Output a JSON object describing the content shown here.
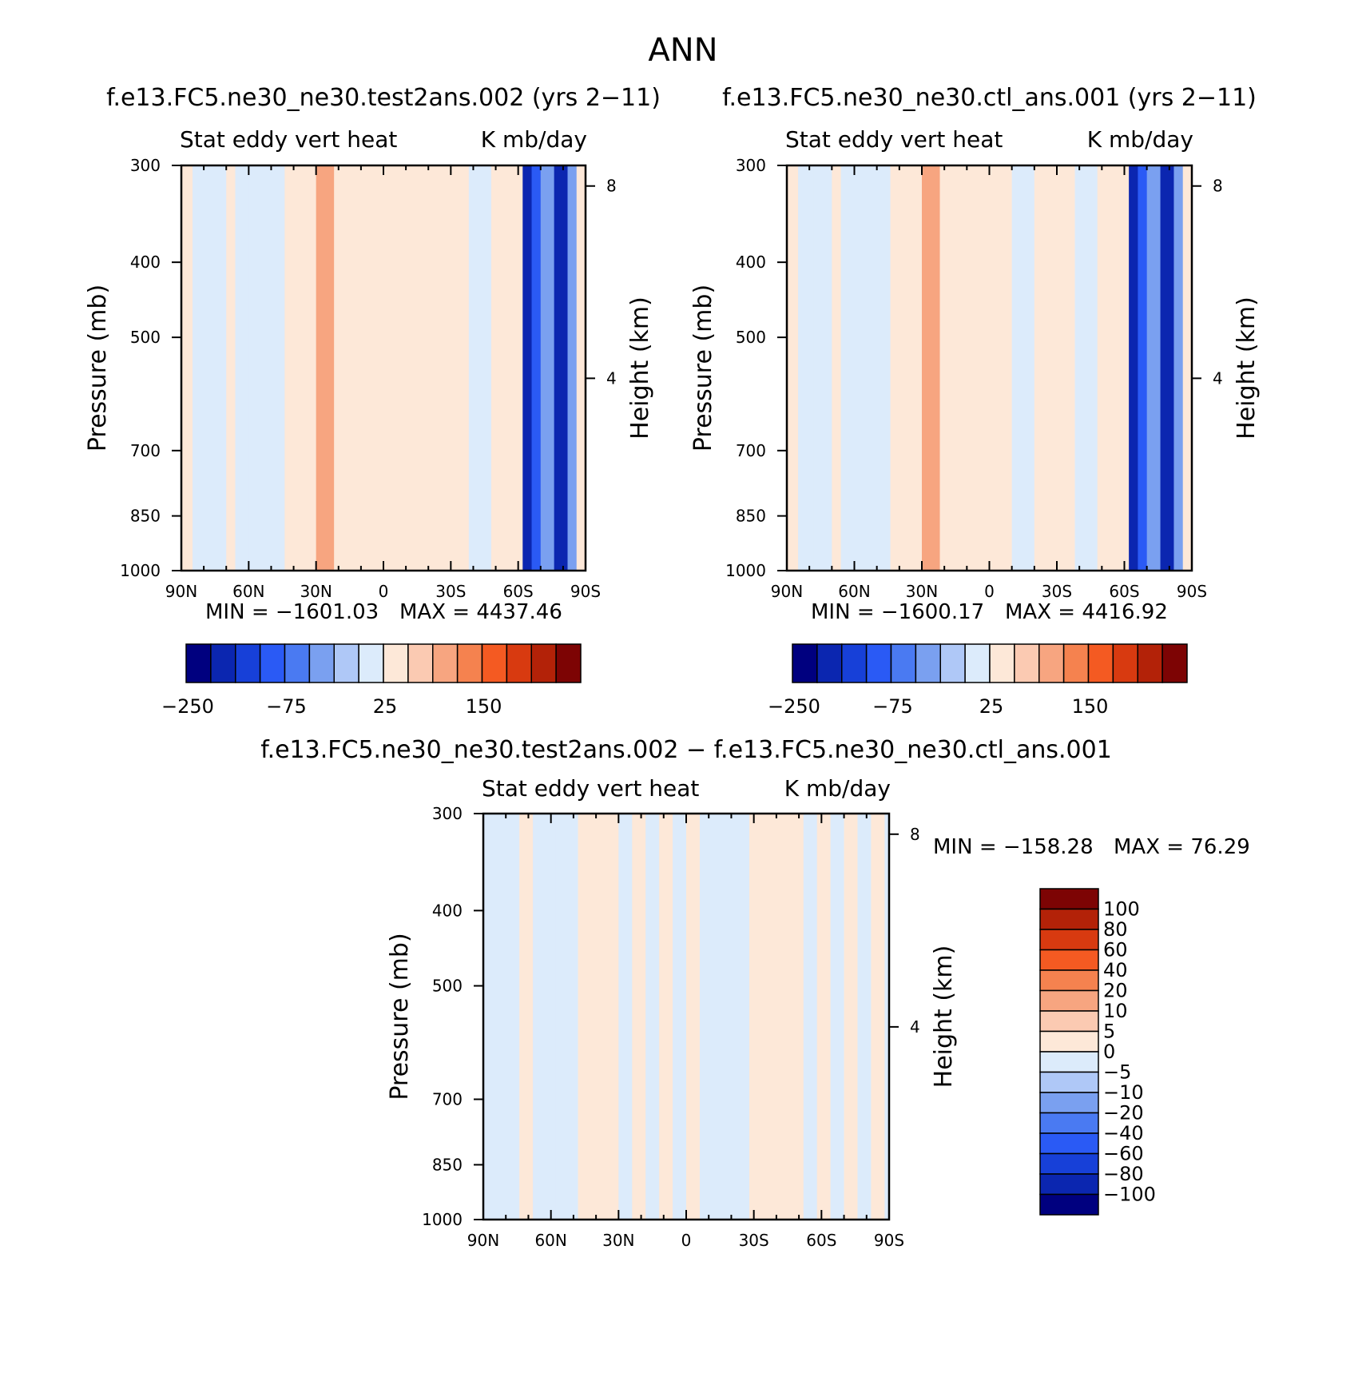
{
  "figure": {
    "title": "ANN"
  },
  "colors": {
    "abs_levels": [
      "#00007f",
      "#0b26b0",
      "#1740d8",
      "#2a5af5",
      "#4a7af2",
      "#7aa0f0",
      "#afc8f7",
      "#dcebfb",
      "#fde8d8",
      "#fbcab2",
      "#f7a580",
      "#f5824f",
      "#f45a22",
      "#d83a10",
      "#b32208",
      "#7d0404"
    ],
    "diff_levels": [
      "#00007f",
      "#0b26b0",
      "#1740d8",
      "#2a5af5",
      "#4a7af2",
      "#7aa0f0",
      "#afc8f7",
      "#dcebfb",
      "#fde8d8",
      "#fbcab2",
      "#f7a580",
      "#f5824f",
      "#f45a22",
      "#d83a10",
      "#b32208",
      "#7d0404"
    ]
  },
  "chart_data": [
    {
      "type": "heatmap",
      "id": "test",
      "title": "f.e13.FC5.ne30_ne30.test2ans.002 (yrs 2−11)",
      "variable": "Stat eddy vert heat",
      "units": "K mb/day",
      "ylabel": "Pressure (mb)",
      "ylabel_right": "Height (km)",
      "xticks": [
        "90N",
        "60N",
        "30N",
        "0",
        "30S",
        "60S",
        "90S"
      ],
      "yticks": [
        "300",
        "400",
        "500",
        "700",
        "850",
        "1000"
      ],
      "yticks_right": [
        "8",
        "4"
      ],
      "ylim": [
        1000,
        300
      ],
      "y_log_scale": true,
      "min_label": "MIN = −1601.03",
      "max_label": "MAX = 4437.46",
      "colorbar_labels": [
        "−250",
        "−75",
        "25",
        "150"
      ],
      "bands": [
        {
          "lat": 90,
          "value": 5
        },
        {
          "lat": 85,
          "value": -5
        },
        {
          "lat": 78,
          "value": -5
        },
        {
          "lat": 70,
          "value": 5
        },
        {
          "lat": 66,
          "value": -5
        },
        {
          "lat": 60,
          "value": -5
        },
        {
          "lat": 52,
          "value": -5
        },
        {
          "lat": 44,
          "value": 5
        },
        {
          "lat": 38,
          "value": 5
        },
        {
          "lat": 30,
          "value": 60
        },
        {
          "lat": 22,
          "value": 5
        },
        {
          "lat": 10,
          "value": 5
        },
        {
          "lat": 0,
          "value": 5
        },
        {
          "lat": -10,
          "value": 5
        },
        {
          "lat": -20,
          "value": 5
        },
        {
          "lat": -28,
          "value": 5
        },
        {
          "lat": -38,
          "value": -5
        },
        {
          "lat": -48,
          "value": 5
        },
        {
          "lat": -56,
          "value": 5
        },
        {
          "lat": -62,
          "value": -250
        },
        {
          "lat": -66,
          "value": -150
        },
        {
          "lat": -70,
          "value": -60
        },
        {
          "lat": -76,
          "value": -250
        },
        {
          "lat": -82,
          "value": -75
        },
        {
          "lat": -86,
          "value": 20
        }
      ]
    },
    {
      "type": "heatmap",
      "id": "ctl",
      "title": "f.e13.FC5.ne30_ne30.ctl_ans.001 (yrs 2−11)",
      "variable": "Stat eddy vert heat",
      "units": "K mb/day",
      "ylabel": "Pressure (mb)",
      "ylabel_right": "Height (km)",
      "xticks": [
        "90N",
        "60N",
        "30N",
        "0",
        "30S",
        "60S",
        "90S"
      ],
      "yticks": [
        "300",
        "400",
        "500",
        "700",
        "850",
        "1000"
      ],
      "yticks_right": [
        "8",
        "4"
      ],
      "ylim": [
        1000,
        300
      ],
      "y_log_scale": true,
      "min_label": "MIN = −1600.17",
      "max_label": "MAX = 4416.92",
      "colorbar_labels": [
        "−250",
        "−75",
        "25",
        "150"
      ],
      "bands": [
        {
          "lat": 90,
          "value": 5
        },
        {
          "lat": 85,
          "value": -5
        },
        {
          "lat": 78,
          "value": -5
        },
        {
          "lat": 70,
          "value": 5
        },
        {
          "lat": 66,
          "value": -5
        },
        {
          "lat": 60,
          "value": -5
        },
        {
          "lat": 52,
          "value": -5
        },
        {
          "lat": 44,
          "value": 5
        },
        {
          "lat": 38,
          "value": 5
        },
        {
          "lat": 30,
          "value": 60
        },
        {
          "lat": 22,
          "value": 5
        },
        {
          "lat": 10,
          "value": 5
        },
        {
          "lat": 0,
          "value": 5
        },
        {
          "lat": -10,
          "value": -5
        },
        {
          "lat": -20,
          "value": 5
        },
        {
          "lat": -28,
          "value": 5
        },
        {
          "lat": -38,
          "value": -5
        },
        {
          "lat": -48,
          "value": 5
        },
        {
          "lat": -56,
          "value": 5
        },
        {
          "lat": -62,
          "value": -250
        },
        {
          "lat": -66,
          "value": -150
        },
        {
          "lat": -70,
          "value": -60
        },
        {
          "lat": -76,
          "value": -250
        },
        {
          "lat": -82,
          "value": -75
        },
        {
          "lat": -86,
          "value": 20
        }
      ]
    },
    {
      "type": "heatmap",
      "id": "diff",
      "title": "f.e13.FC5.ne30_ne30.test2ans.002 − f.e13.FC5.ne30_ne30.ctl_ans.001",
      "variable": "Stat eddy vert heat",
      "units": "K mb/day",
      "ylabel": "Pressure (mb)",
      "ylabel_right": "Height (km)",
      "xticks": [
        "90N",
        "60N",
        "30N",
        "0",
        "30S",
        "60S",
        "90S"
      ],
      "yticks": [
        "300",
        "400",
        "500",
        "700",
        "850",
        "1000"
      ],
      "yticks_right": [
        "8",
        "4"
      ],
      "ylim": [
        1000,
        300
      ],
      "y_log_scale": true,
      "min_label": "MIN = −158.28",
      "max_label": "MAX =  76.29",
      "colorbar_labels": [
        "100",
        "80",
        "60",
        "40",
        "20",
        "10",
        "5",
        "0",
        "−5",
        "−10",
        "−20",
        "−40",
        "−60",
        "−80",
        "−100"
      ],
      "bands": [
        {
          "lat": 90,
          "value": -3
        },
        {
          "lat": 84,
          "value": -3
        },
        {
          "lat": 74,
          "value": 3
        },
        {
          "lat": 68,
          "value": -3
        },
        {
          "lat": 58,
          "value": -3
        },
        {
          "lat": 48,
          "value": 3
        },
        {
          "lat": 42,
          "value": 3
        },
        {
          "lat": 36,
          "value": 3
        },
        {
          "lat": 30,
          "value": -3
        },
        {
          "lat": 24,
          "value": 3
        },
        {
          "lat": 18,
          "value": -3
        },
        {
          "lat": 12,
          "value": 3
        },
        {
          "lat": 6,
          "value": -3
        },
        {
          "lat": 0,
          "value": 3
        },
        {
          "lat": -6,
          "value": -3
        },
        {
          "lat": -12,
          "value": -3
        },
        {
          "lat": -20,
          "value": -3
        },
        {
          "lat": -28,
          "value": 3
        },
        {
          "lat": -36,
          "value": 3
        },
        {
          "lat": -44,
          "value": 3
        },
        {
          "lat": -52,
          "value": -3
        },
        {
          "lat": -58,
          "value": 3
        },
        {
          "lat": -64,
          "value": -3
        },
        {
          "lat": -70,
          "value": 3
        },
        {
          "lat": -76,
          "value": -3
        },
        {
          "lat": -82,
          "value": 3
        },
        {
          "lat": -88,
          "value": -3
        }
      ]
    }
  ]
}
